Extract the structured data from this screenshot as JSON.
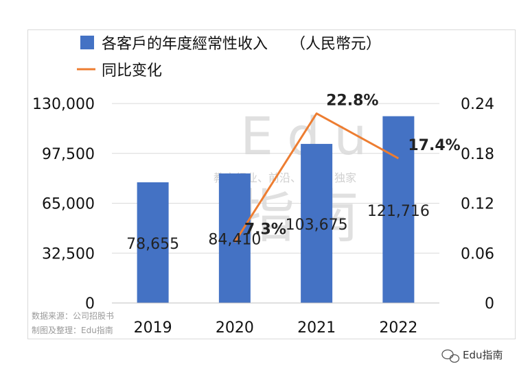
{
  "chart_data": {
    "type": "bar+line",
    "categories": [
      "2019",
      "2020",
      "2021",
      "2022"
    ],
    "series": [
      {
        "name": "各客戶的年度經常性收入　　（人民幣元）",
        "type": "bar",
        "axis": "left",
        "values": [
          78655,
          84410,
          103675,
          121716
        ],
        "labels": [
          "78,655",
          "84,410",
          "103,675",
          "121,716"
        ],
        "color": "#4472C4"
      },
      {
        "name": "同比变化",
        "type": "line",
        "axis": "right",
        "values": [
          null,
          0.073,
          0.228,
          0.174
        ],
        "labels": [
          "",
          "7.3%",
          "22.8%",
          "17.4%"
        ],
        "color": "#ED7D31"
      }
    ],
    "y_left": {
      "ylim": [
        0,
        130000
      ],
      "ticks": [
        "0",
        "32,500",
        "65,000",
        "97,500",
        "130,000"
      ]
    },
    "y_right": {
      "ylim": [
        0,
        0.24
      ],
      "ticks": [
        "0",
        "0.06",
        "0.12",
        "0.18",
        "0.24"
      ]
    },
    "grid": true,
    "legend": "top-left"
  },
  "source": {
    "line1": "数据来源：公司招股书",
    "line2": "制图及整理：Edu指南"
  },
  "watermark": {
    "brand": "Edu",
    "tagline": "教育行业、前沿、深度、独家",
    "cn": "指南"
  },
  "credit": "Edu指南"
}
